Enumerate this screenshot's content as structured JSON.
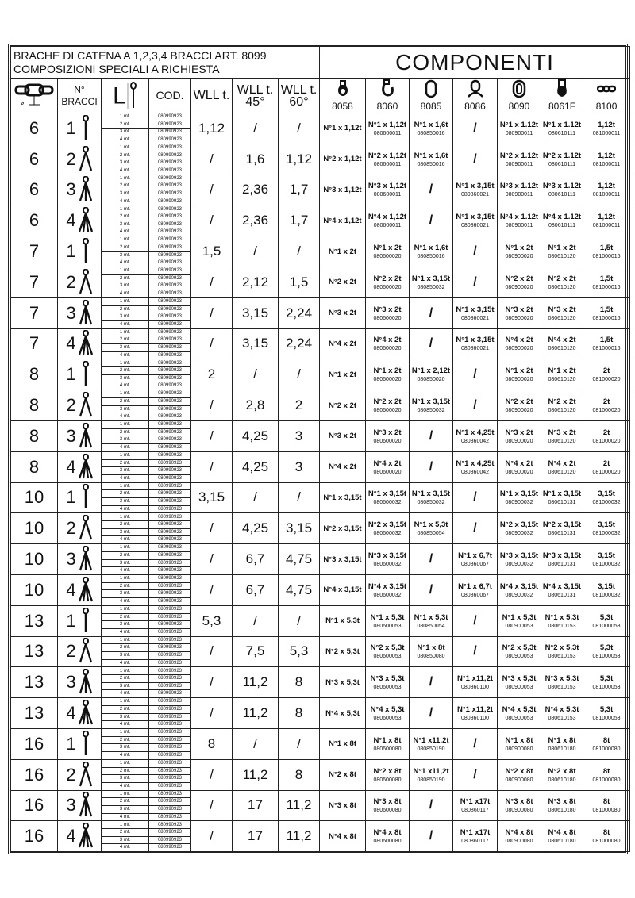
{
  "title_line1": "BRACHE DI CATENA A 1,2,3,4 BRACCI ART. 8099",
  "title_line2": "COMPOSIZIONI SPECIALI A RICHIESTA",
  "components_title": "COMPONENTI",
  "headers": {
    "diameter_symbol": "ø",
    "bracci": "N° BRACCI",
    "length": "L",
    "cod": "COD.",
    "wll": "WLL t.",
    "wll45": "WLL t. 45°",
    "wll60": "WLL t. 60°"
  },
  "component_codes": [
    "8058",
    "8060",
    "8085",
    "8086",
    "8090",
    "8061F",
    "8100"
  ],
  "component_icons": [
    "eye-hook-icon",
    "swivel-hook-icon",
    "master-link-icon",
    "master-link-assembly-icon",
    "connecting-link-icon",
    "grab-hook-icon",
    "chain-icon"
  ],
  "lengths": [
    "1 mt.",
    "2 mt.",
    "3 mt.",
    "4 mt."
  ],
  "cod_value": "080990923",
  "rows": [
    {
      "d": "6",
      "n": "1",
      "wll": "1,12",
      "w45": "/",
      "w60": "/",
      "c": [
        [
          "N°1 x 1,12t",
          ""
        ],
        [
          "N°1 x 1,12t",
          "080600011"
        ],
        [
          "N°1 x 1,6t",
          "080850016"
        ],
        [
          "/",
          ""
        ],
        [
          "N°1 x 1.12t",
          "080900011"
        ],
        [
          "N°1 x 1.12t",
          "080610111"
        ],
        [
          "1,12t",
          "081000011"
        ]
      ]
    },
    {
      "d": "6",
      "n": "2",
      "wll": "/",
      "w45": "1,6",
      "w60": "1,12",
      "c": [
        [
          "N°2 x 1,12t",
          ""
        ],
        [
          "N°2 x 1,12t",
          "080600011"
        ],
        [
          "N°1 x 1,6t",
          "080850016"
        ],
        [
          "/",
          ""
        ],
        [
          "N°2 x 1.12t",
          "080900011"
        ],
        [
          "N°2 x 1.12t",
          "080610111"
        ],
        [
          "1,12t",
          "081000011"
        ]
      ]
    },
    {
      "d": "6",
      "n": "3",
      "wll": "/",
      "w45": "2,36",
      "w60": "1,7",
      "c": [
        [
          "N°3 x 1,12t",
          ""
        ],
        [
          "N°3 x 1,12t",
          "080600011"
        ],
        [
          "/",
          ""
        ],
        [
          "N°1 x 3,15t",
          "080860021"
        ],
        [
          "N°3 x 1.12t",
          "080900011"
        ],
        [
          "N°3 x 1.12t",
          "080610111"
        ],
        [
          "1,12t",
          "081000011"
        ]
      ]
    },
    {
      "d": "6",
      "n": "4",
      "wll": "/",
      "w45": "2,36",
      "w60": "1,7",
      "c": [
        [
          "N°4 x 1,12t",
          ""
        ],
        [
          "N°4 x 1,12t",
          "080600011"
        ],
        [
          "/",
          ""
        ],
        [
          "N°1 x 3,15t",
          "080860021"
        ],
        [
          "N°4 x 1.12t",
          "080900011"
        ],
        [
          "N°4 x 1.12t",
          "080610111"
        ],
        [
          "1,12t",
          "081000011"
        ]
      ]
    },
    {
      "d": "7",
      "n": "1",
      "wll": "1,5",
      "w45": "/",
      "w60": "/",
      "c": [
        [
          "N°1 x 2t",
          ""
        ],
        [
          "N°1 x 2t",
          "080600020"
        ],
        [
          "N°1 x 1,6t",
          "080850016"
        ],
        [
          "/",
          ""
        ],
        [
          "N°1 x 2t",
          "080900020"
        ],
        [
          "N°1 x 2t",
          "080610120"
        ],
        [
          "1,5t",
          "081000016"
        ]
      ]
    },
    {
      "d": "7",
      "n": "2",
      "wll": "/",
      "w45": "2,12",
      "w60": "1,5",
      "c": [
        [
          "N°2 x 2t",
          ""
        ],
        [
          "N°2 x 2t",
          "080600020"
        ],
        [
          "N°1 x 3,15t",
          "080850032"
        ],
        [
          "/",
          ""
        ],
        [
          "N°2 x 2t",
          "080900020"
        ],
        [
          "N°2 x 2t",
          "080610120"
        ],
        [
          "1,5t",
          "081000016"
        ]
      ]
    },
    {
      "d": "7",
      "n": "3",
      "wll": "/",
      "w45": "3,15",
      "w60": "2,24",
      "c": [
        [
          "N°3 x 2t",
          ""
        ],
        [
          "N°3 x 2t",
          "080600020"
        ],
        [
          "/",
          ""
        ],
        [
          "N°1 x 3,15t",
          "080860021"
        ],
        [
          "N°3 x 2t",
          "080900020"
        ],
        [
          "N°3 x 2t",
          "080610120"
        ],
        [
          "1,5t",
          "081000016"
        ]
      ]
    },
    {
      "d": "7",
      "n": "4",
      "wll": "/",
      "w45": "3,15",
      "w60": "2,24",
      "c": [
        [
          "N°4 x 2t",
          ""
        ],
        [
          "N°4 x 2t",
          "080600020"
        ],
        [
          "/",
          ""
        ],
        [
          "N°1 x 3,15t",
          "080860021"
        ],
        [
          "N°4 x 2t",
          "080900020"
        ],
        [
          "N°4 x 2t",
          "080610120"
        ],
        [
          "1,5t",
          "081000016"
        ]
      ]
    },
    {
      "d": "8",
      "n": "1",
      "wll": "2",
      "w45": "/",
      "w60": "/",
      "c": [
        [
          "N°1 x 2t",
          ""
        ],
        [
          "N°1 x 2t",
          "080600020"
        ],
        [
          "N°1 x 2,12t",
          "080850020"
        ],
        [
          "/",
          ""
        ],
        [
          "N°1 x 2t",
          "080900020"
        ],
        [
          "N°1 x 2t",
          "080610120"
        ],
        [
          "2t",
          "081000020"
        ]
      ]
    },
    {
      "d": "8",
      "n": "2",
      "wll": "/",
      "w45": "2,8",
      "w60": "2",
      "c": [
        [
          "N°2 x 2t",
          ""
        ],
        [
          "N°2 x 2t",
          "080600020"
        ],
        [
          "N°1 x 3,15t",
          "080850032"
        ],
        [
          "/",
          ""
        ],
        [
          "N°2 x 2t",
          "080900020"
        ],
        [
          "N°2 x 2t",
          "080610120"
        ],
        [
          "2t",
          "081000020"
        ]
      ]
    },
    {
      "d": "8",
      "n": "3",
      "wll": "/",
      "w45": "4,25",
      "w60": "3",
      "c": [
        [
          "N°3 x 2t",
          ""
        ],
        [
          "N°3 x 2t",
          "080600020"
        ],
        [
          "/",
          ""
        ],
        [
          "N°1 x 4,25t",
          "080860042"
        ],
        [
          "N°3 x 2t",
          "080900020"
        ],
        [
          "N°3 x 2t",
          "080610120"
        ],
        [
          "2t",
          "081000020"
        ]
      ]
    },
    {
      "d": "8",
      "n": "4",
      "wll": "/",
      "w45": "4,25",
      "w60": "3",
      "c": [
        [
          "N°4 x 2t",
          ""
        ],
        [
          "N°4 x 2t",
          "080600020"
        ],
        [
          "/",
          ""
        ],
        [
          "N°1 x 4,25t",
          "080860042"
        ],
        [
          "N°4 x 2t",
          "080900020"
        ],
        [
          "N°4 x 2t",
          "080610120"
        ],
        [
          "2t",
          "081000020"
        ]
      ]
    },
    {
      "d": "10",
      "n": "1",
      "wll": "3,15",
      "w45": "/",
      "w60": "/",
      "c": [
        [
          "N°1 x 3,15t",
          ""
        ],
        [
          "N°1 x 3,15t",
          "080600032"
        ],
        [
          "N°1 x 3,15t",
          "080850032"
        ],
        [
          "/",
          ""
        ],
        [
          "N°1 x 3,15t",
          "080900032"
        ],
        [
          "N°1 x 3,15t",
          "080610131"
        ],
        [
          "3,15t",
          "081000032"
        ]
      ]
    },
    {
      "d": "10",
      "n": "2",
      "wll": "/",
      "w45": "4,25",
      "w60": "3,15",
      "c": [
        [
          "N°2 x 3,15t",
          ""
        ],
        [
          "N°2 x 3,15t",
          "080600032"
        ],
        [
          "N°1 x 5,3t",
          "080850054"
        ],
        [
          "/",
          ""
        ],
        [
          "N°2 x 3,15t",
          "080900032"
        ],
        [
          "N°2 x 3,15t",
          "080610131"
        ],
        [
          "3,15t",
          "081000032"
        ]
      ]
    },
    {
      "d": "10",
      "n": "3",
      "wll": "/",
      "w45": "6,7",
      "w60": "4,75",
      "c": [
        [
          "N°3 x 3,15t",
          ""
        ],
        [
          "N°3 x 3,15t",
          "080600032"
        ],
        [
          "/",
          ""
        ],
        [
          "N°1 x 6,7t",
          "080860067"
        ],
        [
          "N°3 x 3,15t",
          "080900032"
        ],
        [
          "N°3 x 3,15t",
          "080610131"
        ],
        [
          "3,15t",
          "081000032"
        ]
      ]
    },
    {
      "d": "10",
      "n": "4",
      "wll": "/",
      "w45": "6,7",
      "w60": "4,75",
      "c": [
        [
          "N°4 x 3,15t",
          ""
        ],
        [
          "N°4 x 3,15t",
          "080600032"
        ],
        [
          "/",
          ""
        ],
        [
          "N°1 x 6,7t",
          "080860067"
        ],
        [
          "N°4 x 3,15t",
          "080900032"
        ],
        [
          "N°4 x 3,15t",
          "080610131"
        ],
        [
          "3,15t",
          "081000032"
        ]
      ]
    },
    {
      "d": "13",
      "n": "1",
      "wll": "5,3",
      "w45": "/",
      "w60": "/",
      "c": [
        [
          "N°1 x 5,3t",
          ""
        ],
        [
          "N°1 x 5,3t",
          "080600053"
        ],
        [
          "N°1 x 5,3t",
          "080850054"
        ],
        [
          "/",
          ""
        ],
        [
          "N°1 x 5,3t",
          "080900053"
        ],
        [
          "N°1 x 5,3t",
          "080610153"
        ],
        [
          "5,3t",
          "081000053"
        ]
      ]
    },
    {
      "d": "13",
      "n": "2",
      "wll": "/",
      "w45": "7,5",
      "w60": "5,3",
      "c": [
        [
          "N°2 x 5,3t",
          ""
        ],
        [
          "N°2 x 5,3t",
          "080600053"
        ],
        [
          "N°1 x 8t",
          "080850080"
        ],
        [
          "/",
          ""
        ],
        [
          "N°2 x 5,3t",
          "080900053"
        ],
        [
          "N°2 x 5,3t",
          "080610153"
        ],
        [
          "5,3t",
          "081000053"
        ]
      ]
    },
    {
      "d": "13",
      "n": "3",
      "wll": "/",
      "w45": "11,2",
      "w60": "8",
      "c": [
        [
          "N°3 x 5,3t",
          ""
        ],
        [
          "N°3 x 5,3t",
          "080600053"
        ],
        [
          "/",
          ""
        ],
        [
          "N°1 x11,2t",
          "080860100"
        ],
        [
          "N°3 x 5,3t",
          "080900053"
        ],
        [
          "N°3 x 5,3t",
          "080610153"
        ],
        [
          "5,3t",
          "081000053"
        ]
      ]
    },
    {
      "d": "13",
      "n": "4",
      "wll": "/",
      "w45": "11,2",
      "w60": "8",
      "c": [
        [
          "N°4 x 5,3t",
          ""
        ],
        [
          "N°4 x 5,3t",
          "080600053"
        ],
        [
          "/",
          ""
        ],
        [
          "N°1 x11,2t",
          "080860100"
        ],
        [
          "N°4 x 5,3t",
          "080900053"
        ],
        [
          "N°4 x 5,3t",
          "080610153"
        ],
        [
          "5,3t",
          "081000053"
        ]
      ]
    },
    {
      "d": "16",
      "n": "1",
      "wll": "8",
      "w45": "/",
      "w60": "/",
      "c": [
        [
          "N°1 x 8t",
          ""
        ],
        [
          "N°1 x 8t",
          "080600080"
        ],
        [
          "N°1 x11,2t",
          "080850190"
        ],
        [
          "/",
          ""
        ],
        [
          "N°1 x 8t",
          "080900080"
        ],
        [
          "N°1 x 8t",
          "080610180"
        ],
        [
          "8t",
          "081000080"
        ]
      ]
    },
    {
      "d": "16",
      "n": "2",
      "wll": "/",
      "w45": "11,2",
      "w60": "8",
      "c": [
        [
          "N°2 x 8t",
          ""
        ],
        [
          "N°2 x 8t",
          "080600080"
        ],
        [
          "N°1 x11,2t",
          "080850190"
        ],
        [
          "/",
          ""
        ],
        [
          "N°2 x 8t",
          "080900080"
        ],
        [
          "N°2 x 8t",
          "080610180"
        ],
        [
          "8t",
          "081000080"
        ]
      ]
    },
    {
      "d": "16",
      "n": "3",
      "wll": "/",
      "w45": "17",
      "w60": "11,2",
      "c": [
        [
          "N°3 x 8t",
          ""
        ],
        [
          "N°3 x 8t",
          "080600080"
        ],
        [
          "/",
          ""
        ],
        [
          "N°1 x17t",
          "080860117"
        ],
        [
          "N°3 x 8t",
          "080900080"
        ],
        [
          "N°3 x 8t",
          "080610180"
        ],
        [
          "8t",
          "081000080"
        ]
      ]
    },
    {
      "d": "16",
      "n": "4",
      "wll": "/",
      "w45": "17",
      "w60": "11,2",
      "c": [
        [
          "N°4 x 8t",
          ""
        ],
        [
          "N°4 x 8t",
          "080600080"
        ],
        [
          "/",
          ""
        ],
        [
          "N°1 x17t",
          "080860117"
        ],
        [
          "N°4 x 8t",
          "080900080"
        ],
        [
          "N°4 x 8t",
          "080610180"
        ],
        [
          "8t",
          "081000080"
        ]
      ]
    }
  ]
}
